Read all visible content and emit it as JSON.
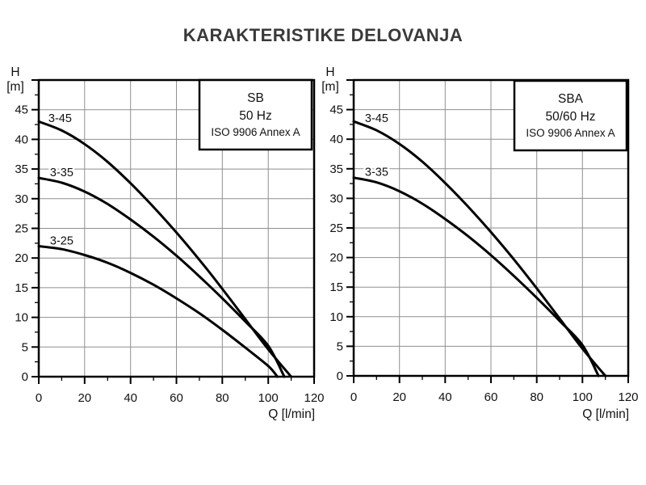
{
  "page_title": "KARAKTERISTIKE DELOVANJA",
  "colors": {
    "background": "#ffffff",
    "title_text": "#3a3a3a",
    "axis_frame": "#000000",
    "grid_line": "#8f8f8f",
    "curve": "#000000",
    "label_text": "#111111"
  },
  "chart_data": [
    {
      "type": "line",
      "id": "SB",
      "legend_box": {
        "model": "SB",
        "frequency": "50 Hz",
        "standard": "ISO 9906 Annex A"
      },
      "xlabel": "Q [l/min]",
      "ylabel": "H [m]",
      "ylabel_lines": [
        "H",
        "[m]"
      ],
      "xlim": [
        0,
        120
      ],
      "ylim": [
        0,
        50
      ],
      "x_major_ticks": [
        0,
        20,
        40,
        60,
        80,
        100,
        120
      ],
      "x_minor_ticks": [
        10,
        30,
        50,
        70,
        90,
        110
      ],
      "y_major_ticks": [
        0,
        5,
        10,
        15,
        20,
        25,
        30,
        35,
        40,
        45,
        50
      ],
      "y_labeled_ticks": [
        0,
        5,
        10,
        15,
        20,
        25,
        30,
        35,
        40,
        45
      ],
      "y_minor_ticks": [
        2.5,
        7.5,
        12.5,
        17.5,
        22.5,
        27.5,
        32.5,
        37.5,
        42.5,
        47.5
      ],
      "x_gridlines": [
        20,
        40,
        60,
        80,
        100
      ],
      "y_gridlines": [
        5,
        10,
        15,
        20,
        25,
        30,
        35,
        40,
        45
      ],
      "grid": true,
      "legend_position": "top-right",
      "series": [
        {
          "name": "3-45",
          "label_pos": [
            4.2,
            42.9
          ],
          "points": [
            [
              0,
              43
            ],
            [
              10,
              41.5
            ],
            [
              20,
              39.2
            ],
            [
              30,
              36.2
            ],
            [
              40,
              32.6
            ],
            [
              50,
              28.6
            ],
            [
              60,
              24.3
            ],
            [
              70,
              19.7
            ],
            [
              80,
              14.8
            ],
            [
              90,
              9.7
            ],
            [
              100,
              4.6
            ],
            [
              110,
              0
            ]
          ]
        },
        {
          "name": "3-35",
          "label_pos": [
            4.9,
            33.8
          ],
          "points": [
            [
              0,
              33.5
            ],
            [
              10,
              32.7
            ],
            [
              20,
              31.2
            ],
            [
              30,
              29.1
            ],
            [
              40,
              26.5
            ],
            [
              50,
              23.6
            ],
            [
              60,
              20.4
            ],
            [
              70,
              16.9
            ],
            [
              80,
              13.2
            ],
            [
              90,
              9.3
            ],
            [
              100,
              5.2
            ],
            [
              107,
              0
            ]
          ]
        },
        {
          "name": "3-25",
          "label_pos": [
            4.9,
            22.3
          ],
          "points": [
            [
              0,
              22
            ],
            [
              10,
              21.5
            ],
            [
              20,
              20.5
            ],
            [
              30,
              19.2
            ],
            [
              40,
              17.5
            ],
            [
              50,
              15.5
            ],
            [
              60,
              13.2
            ],
            [
              70,
              10.7
            ],
            [
              80,
              7.9
            ],
            [
              90,
              4.9
            ],
            [
              100,
              1.8
            ],
            [
              104,
              0
            ]
          ]
        }
      ]
    },
    {
      "type": "line",
      "id": "SBA",
      "legend_box": {
        "model": "SBA",
        "frequency": "50/60 Hz",
        "standard": "ISO 9906 Annex A"
      },
      "xlabel": "Q [l/min]",
      "ylabel": "H [m]",
      "ylabel_lines": [
        "H",
        "[m]"
      ],
      "xlim": [
        0,
        120
      ],
      "ylim": [
        0,
        50
      ],
      "x_major_ticks": [
        0,
        20,
        40,
        60,
        80,
        100,
        120
      ],
      "x_minor_ticks": [
        10,
        30,
        50,
        70,
        90,
        110
      ],
      "y_major_ticks": [
        0,
        5,
        10,
        15,
        20,
        25,
        30,
        35,
        40,
        45,
        50
      ],
      "y_labeled_ticks": [
        0,
        5,
        10,
        15,
        20,
        25,
        30,
        35,
        40,
        45
      ],
      "y_minor_ticks": [
        2.5,
        7.5,
        12.5,
        17.5,
        22.5,
        27.5,
        32.5,
        37.5,
        42.5,
        47.5
      ],
      "x_gridlines": [
        20,
        40,
        60,
        80,
        100
      ],
      "y_gridlines": [
        5,
        10,
        15,
        20,
        25,
        30,
        35,
        40,
        45
      ],
      "grid": true,
      "legend_position": "top-right",
      "series": [
        {
          "name": "3-45",
          "label_pos": [
            4.9,
            42.9
          ],
          "points": [
            [
              0,
              43
            ],
            [
              10,
              41.5
            ],
            [
              20,
              39.2
            ],
            [
              30,
              36.2
            ],
            [
              40,
              32.6
            ],
            [
              50,
              28.6
            ],
            [
              60,
              24.3
            ],
            [
              70,
              19.7
            ],
            [
              80,
              14.8
            ],
            [
              90,
              9.7
            ],
            [
              100,
              4.6
            ],
            [
              110,
              0
            ]
          ]
        },
        {
          "name": "3-35",
          "label_pos": [
            4.9,
            33.8
          ],
          "points": [
            [
              0,
              33.5
            ],
            [
              10,
              32.7
            ],
            [
              20,
              31.2
            ],
            [
              30,
              29.1
            ],
            [
              40,
              26.5
            ],
            [
              50,
              23.6
            ],
            [
              60,
              20.4
            ],
            [
              70,
              16.9
            ],
            [
              80,
              13.2
            ],
            [
              90,
              9.3
            ],
            [
              100,
              5.2
            ],
            [
              107,
              0
            ]
          ]
        }
      ]
    }
  ]
}
